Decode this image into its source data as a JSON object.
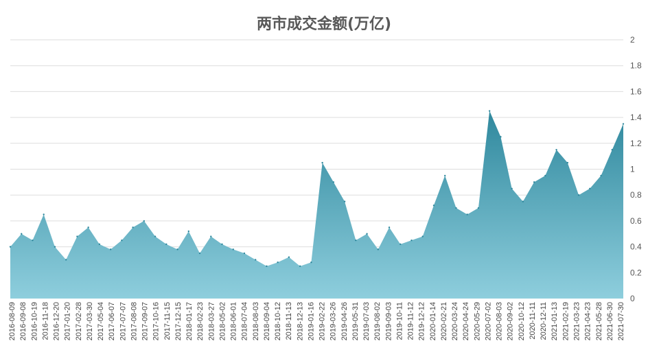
{
  "chart_data": {
    "type": "area",
    "title": "两市成交金额(万亿)",
    "xlabel": "",
    "ylabel": "",
    "ylim": [
      0,
      2
    ],
    "yticks": [
      "0",
      "0.2",
      "0.4",
      "0.6",
      "0.8",
      "1",
      "1.2",
      "1.4",
      "1.6",
      "1.8",
      "2"
    ],
    "grid": true,
    "legend": "none",
    "colors": {
      "top": "#2f889d",
      "bottom": "#8ecedd",
      "grid": "#dddddd"
    },
    "x_tick_labels": [
      "2016-08-09",
      "2016-09-08",
      "2016-10-19",
      "2016-11-18",
      "2016-12-20",
      "2017-01-20",
      "2017-02-28",
      "2017-03-30",
      "2017-05-04",
      "2017-06-07",
      "2017-07-07",
      "2017-08-08",
      "2017-09-07",
      "2017-10-16",
      "2017-11-15",
      "2017-12-15",
      "2018-01-17",
      "2018-02-23",
      "2018-03-27",
      "2018-05-02",
      "2018-06-01",
      "2018-07-04",
      "2018-08-03",
      "2018-09-04",
      "2018-10-12",
      "2018-11-13",
      "2018-12-13",
      "2019-01-16",
      "2019-02-22",
      "2019-03-26",
      "2019-04-26",
      "2019-05-31",
      "2019-07-03",
      "2019-08-02",
      "2019-09-03",
      "2019-10-11",
      "2019-11-12",
      "2019-12-12",
      "2020-01-14",
      "2020-02-21",
      "2020-03-24",
      "2020-04-24",
      "2020-05-29",
      "2020-07-02",
      "2020-08-03",
      "2020-09-02",
      "2020-10-12",
      "2020-11-11",
      "2020-12-11",
      "2021-01-13",
      "2021-02-19",
      "2021-03-23",
      "2021-04-23",
      "2021-05-28",
      "2021-06-30",
      "2021-07-30"
    ],
    "series": [
      {
        "x": [
          "2016-08-09",
          "2016-09-08",
          "2016-10-19",
          "2016-11-18",
          "2016-12-20",
          "2017-01-20",
          "2017-02-28",
          "2017-03-30",
          "2017-05-04",
          "2017-06-07",
          "2017-07-07",
          "2017-08-08",
          "2017-09-07",
          "2017-10-16",
          "2017-11-15",
          "2017-12-15",
          "2018-01-17",
          "2018-02-23",
          "2018-03-27",
          "2018-05-02",
          "2018-06-01",
          "2018-07-04",
          "2018-08-03",
          "2018-09-04",
          "2018-10-12",
          "2018-11-13",
          "2018-12-13",
          "2019-01-16",
          "2019-02-22",
          "2019-03-26",
          "2019-04-26",
          "2019-05-31",
          "2019-07-03",
          "2019-08-02",
          "2019-09-03",
          "2019-10-11",
          "2019-11-12",
          "2019-12-12",
          "2020-01-14",
          "2020-02-21",
          "2020-03-24",
          "2020-04-24",
          "2020-05-29",
          "2020-07-02",
          "2020-08-03",
          "2020-09-02",
          "2020-10-12",
          "2020-11-11",
          "2020-12-11",
          "2021-01-13",
          "2021-02-19",
          "2021-03-23",
          "2021-04-23",
          "2021-05-28",
          "2021-06-30",
          "2021-07-30"
        ],
        "values": [
          0.4,
          0.5,
          0.45,
          0.65,
          0.4,
          0.3,
          0.48,
          0.55,
          0.42,
          0.38,
          0.45,
          0.55,
          0.6,
          0.48,
          0.42,
          0.38,
          0.52,
          0.35,
          0.48,
          0.42,
          0.38,
          0.35,
          0.3,
          0.25,
          0.28,
          0.32,
          0.25,
          0.28,
          1.05,
          0.9,
          0.75,
          0.45,
          0.5,
          0.38,
          0.55,
          0.42,
          0.45,
          0.48,
          0.72,
          0.95,
          0.7,
          0.65,
          0.7,
          1.45,
          1.25,
          0.85,
          0.75,
          0.9,
          0.95,
          1.15,
          1.05,
          0.8,
          0.85,
          0.95,
          1.15,
          1.35
        ]
      }
    ]
  }
}
